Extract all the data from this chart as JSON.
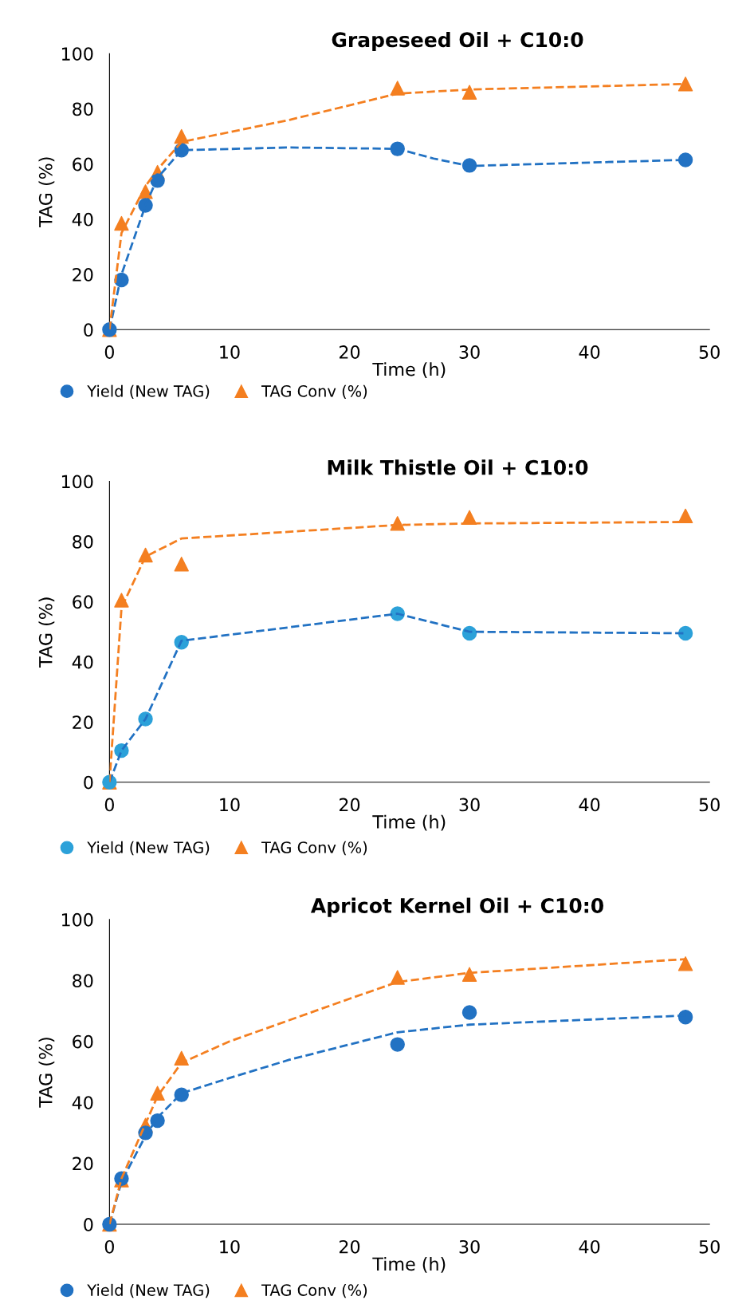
{
  "chart_data": [
    {
      "type": "scatter",
      "title": "Grapeseed Oil + C10:0",
      "xlabel": "Time (h)",
      "ylabel": "TAG (%)",
      "xlim": [
        0,
        50
      ],
      "xticks": [
        0,
        10,
        20,
        30,
        40,
        50
      ],
      "ylim": [
        0,
        100
      ],
      "yticks": [
        0,
        20,
        40,
        60,
        80,
        100
      ],
      "legend": "bottom",
      "grid": false,
      "series": [
        {
          "name": "Yield (New TAG)",
          "color": "#2272c3",
          "marker": "circle",
          "x": [
            0,
            1,
            3,
            4,
            6,
            24,
            30,
            48
          ],
          "values": [
            0,
            18,
            45,
            54,
            65,
            65.5,
            59.5,
            61.5
          ]
        },
        {
          "name": "TAG Conv (%)",
          "color": "#f47f20",
          "marker": "triangle",
          "x": [
            0,
            1,
            3,
            4,
            6,
            24,
            30,
            48
          ],
          "values": [
            0,
            38.5,
            50,
            57,
            70,
            87.5,
            86,
            89
          ]
        },
        {
          "type": "line",
          "color": "#2272c3",
          "line_style": "dashed",
          "x": [
            0,
            1,
            3,
            4,
            6,
            15,
            24,
            27,
            30,
            48
          ],
          "values": [
            0,
            20,
            45,
            55,
            65,
            66,
            65.5,
            62,
            59.3,
            61.5
          ]
        },
        {
          "type": "line",
          "color": "#f47f20",
          "line_style": "dashed",
          "x": [
            0,
            1,
            3,
            4,
            6,
            15,
            24,
            30,
            48
          ],
          "values": [
            0,
            35,
            52,
            58,
            68,
            76,
            85.5,
            87,
            89
          ]
        }
      ]
    },
    {
      "type": "scatter",
      "title": "Milk Thistle Oil + C10:0",
      "xlabel": "Time (h)",
      "ylabel": "TAG (%)",
      "xlim": [
        0,
        50
      ],
      "xticks": [
        0,
        10,
        20,
        30,
        40,
        50
      ],
      "ylim": [
        0,
        100
      ],
      "yticks": [
        0,
        20,
        40,
        60,
        80,
        100
      ],
      "legend": "bottom",
      "grid": false,
      "series": [
        {
          "name": "Yield (New TAG)",
          "color": "#2ca1d9",
          "marker": "circle",
          "x": [
            0,
            1,
            3,
            6,
            24,
            30,
            48
          ],
          "values": [
            0,
            10.5,
            21,
            46.5,
            56,
            49.5,
            49.5
          ]
        },
        {
          "name": "TAG Conv (%)",
          "color": "#f47f20",
          "marker": "triangle",
          "x": [
            0,
            1,
            3,
            6,
            24,
            30,
            48
          ],
          "values": [
            0,
            60.5,
            75.5,
            72.5,
            86,
            88,
            88.5
          ]
        },
        {
          "type": "line",
          "color": "#2272c3",
          "line_style": "dashed",
          "x": [
            0,
            1,
            3,
            6,
            24,
            30,
            48
          ],
          "values": [
            0,
            10.5,
            21,
            47,
            56,
            50,
            49.5
          ]
        },
        {
          "type": "line",
          "color": "#f47f20",
          "line_style": "dashed",
          "x": [
            0,
            1,
            3,
            6,
            24,
            30,
            48
          ],
          "values": [
            0,
            58,
            75,
            81,
            85.5,
            86,
            86.5
          ]
        }
      ]
    },
    {
      "type": "scatter",
      "title": "Apricot Kernel Oil + C10:0",
      "xlabel": "Time (h)",
      "ylabel": "TAG (%)",
      "xlim": [
        0,
        50
      ],
      "xticks": [
        0,
        10,
        20,
        30,
        40,
        50
      ],
      "ylim": [
        0,
        100
      ],
      "yticks": [
        0,
        20,
        40,
        60,
        80,
        100
      ],
      "legend": "bottom",
      "grid": false,
      "series": [
        {
          "name": "Yield (New TAG)",
          "color": "#2272c3",
          "marker": "circle",
          "x": [
            0,
            1,
            3,
            4,
            6,
            24,
            30,
            48
          ],
          "values": [
            0,
            15,
            30,
            34,
            42.5,
            59,
            69.5,
            68
          ]
        },
        {
          "name": "TAG Conv (%)",
          "color": "#f47f20",
          "marker": "triangle",
          "x": [
            0,
            1,
            3,
            4,
            6,
            24,
            30,
            48
          ],
          "values": [
            0,
            14.5,
            32.5,
            43,
            54.5,
            81,
            82,
            85.5
          ]
        },
        {
          "type": "line",
          "color": "#2272c3",
          "line_style": "dashed",
          "x": [
            0,
            1,
            3,
            4,
            6,
            10,
            15,
            20,
            24,
            30,
            48
          ],
          "values": [
            0,
            14,
            29,
            35,
            43,
            48,
            54,
            59,
            63,
            65.5,
            68.5
          ]
        },
        {
          "type": "line",
          "color": "#f47f20",
          "line_style": "dashed",
          "x": [
            0,
            1,
            3,
            4,
            6,
            10,
            15,
            20,
            24,
            30,
            48
          ],
          "values": [
            0,
            15,
            33,
            42,
            53,
            60,
            67,
            74,
            79.5,
            82.5,
            87
          ]
        }
      ]
    }
  ]
}
